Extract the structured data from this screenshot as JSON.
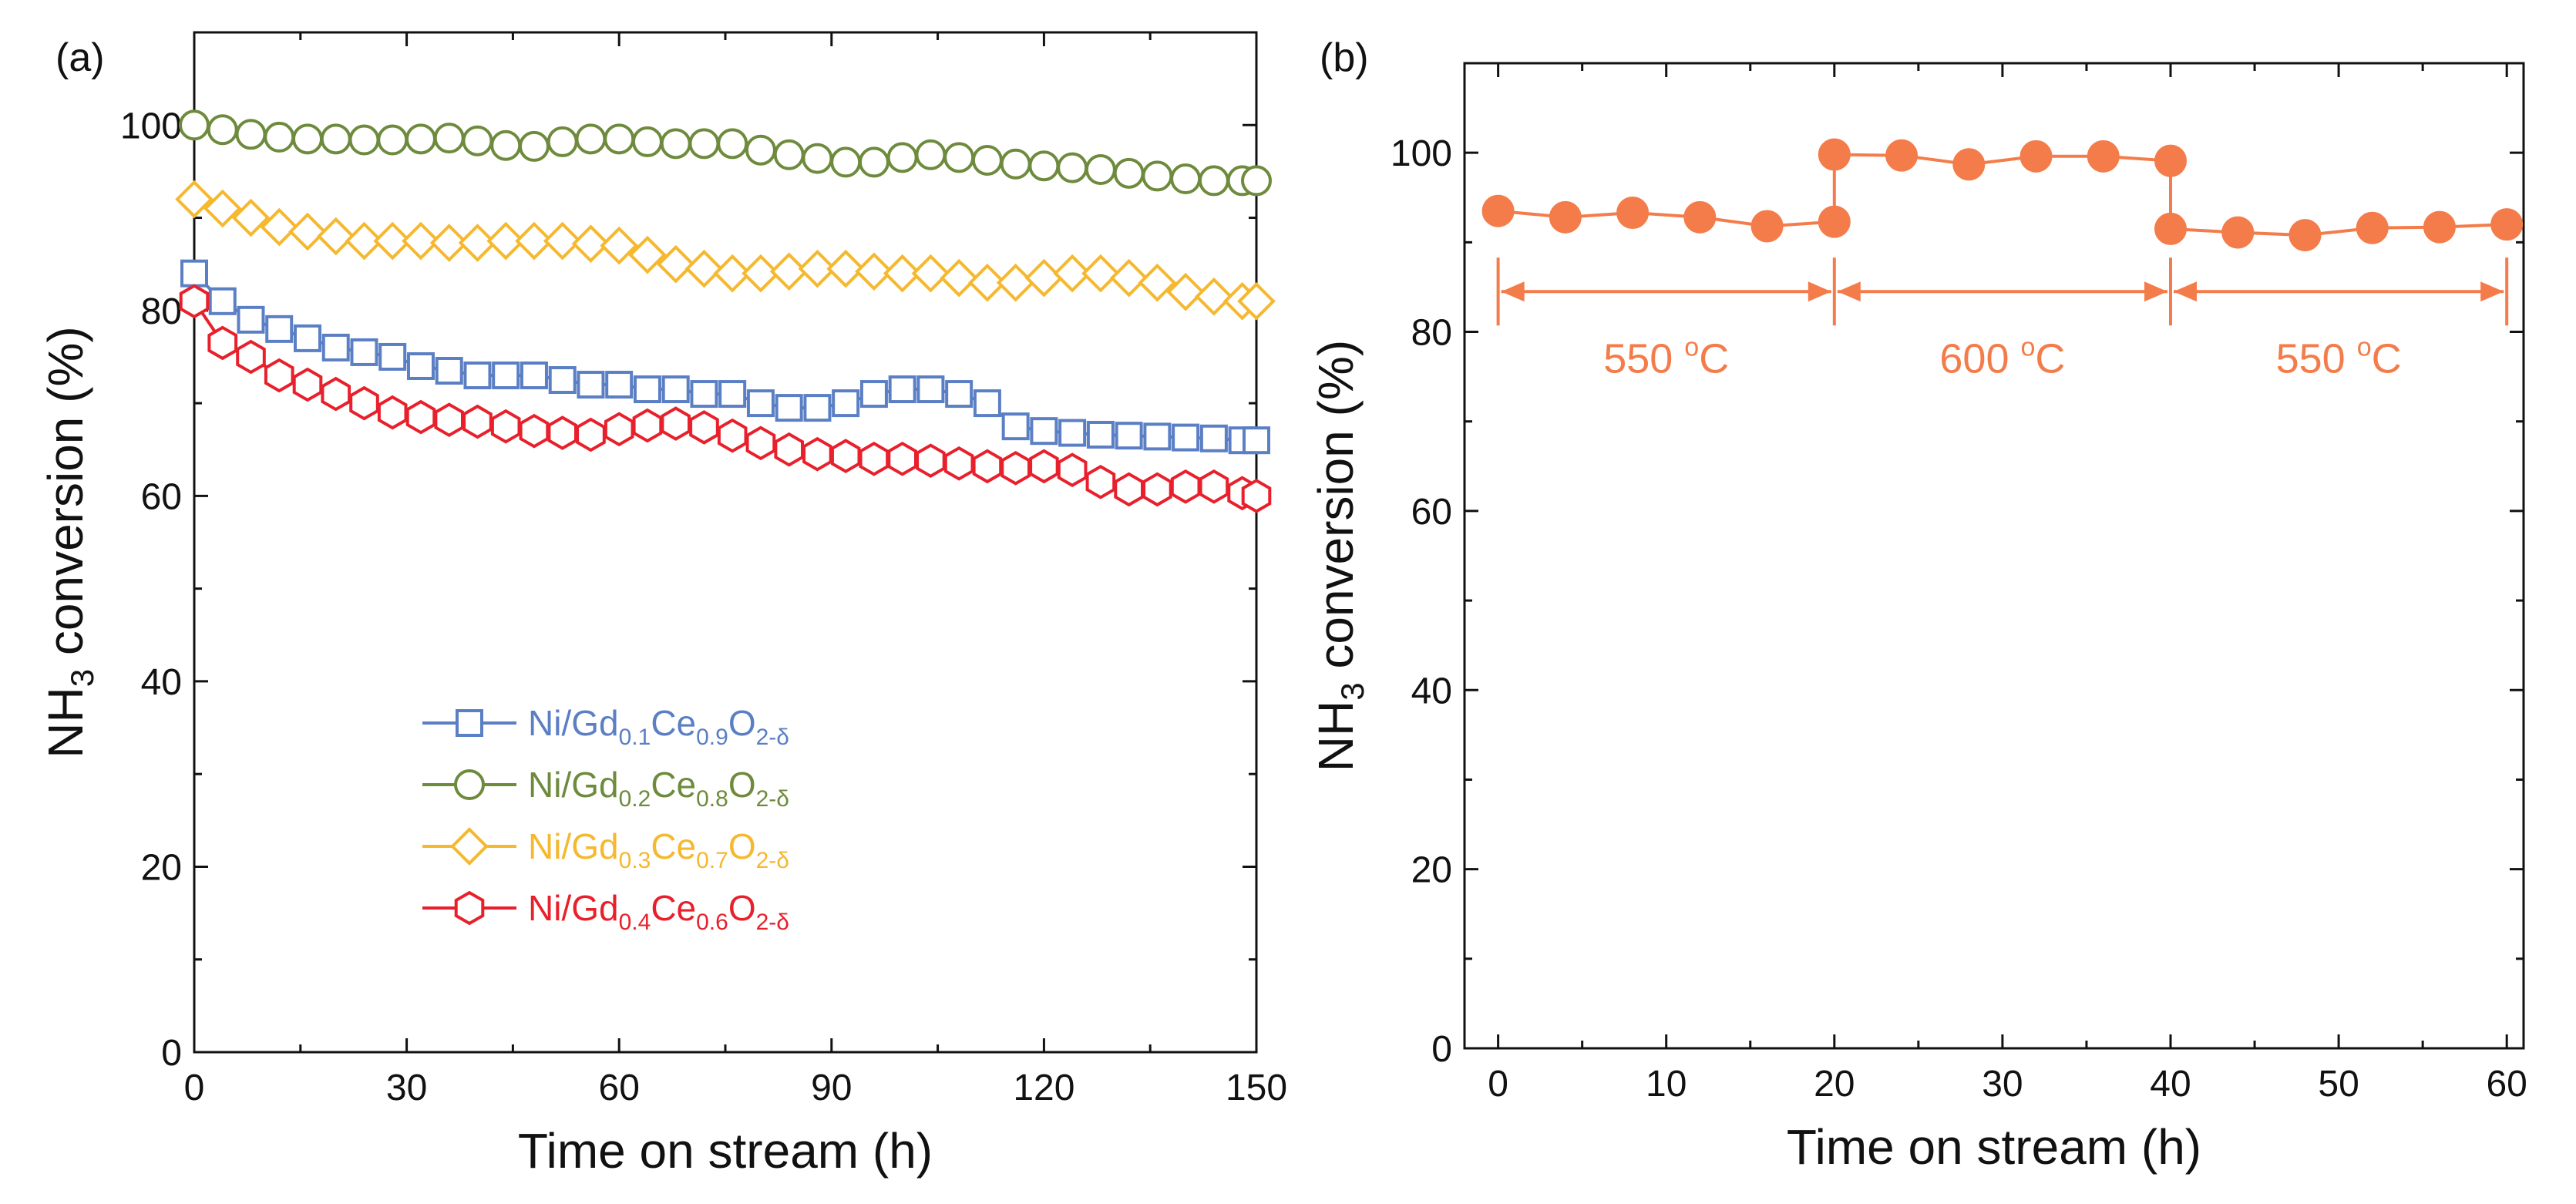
{
  "chart_data": [
    {
      "type": "line",
      "panel_label": "(a)",
      "xlabel": "Time on stream (h)",
      "ylabel_parts": {
        "main": "NH",
        "sub": "3",
        "rest": " conversion (%)"
      },
      "xlim": [
        0,
        150
      ],
      "ylim": [
        0,
        110
      ],
      "xticks": [
        0,
        30,
        60,
        90,
        120,
        150
      ],
      "yticks": [
        0,
        20,
        40,
        60,
        80,
        100
      ],
      "grid": false,
      "legend_position": "lower-left",
      "x": [
        0,
        4,
        8,
        12,
        16,
        20,
        24,
        28,
        32,
        36,
        40,
        44,
        48,
        52,
        56,
        60,
        64,
        68,
        72,
        76,
        80,
        84,
        88,
        92,
        96,
        100,
        104,
        108,
        112,
        116,
        120,
        124,
        128,
        132,
        136,
        140,
        144,
        148,
        150
      ],
      "series": [
        {
          "name": "Ni/Gd0.1Ce0.9O2-δ",
          "label_parts": {
            "a": "Ni/Gd",
            "s1": "0.1",
            "b": "Ce",
            "s2": "0.9",
            "c": "O",
            "s3": "2-δ"
          },
          "color": "#5b7fc4",
          "marker": "square",
          "values": [
            84,
            81,
            79,
            78,
            77,
            76,
            75.5,
            75,
            74,
            73.5,
            73,
            73,
            73,
            72.5,
            72,
            72,
            71.5,
            71.5,
            71,
            71,
            70,
            69.5,
            69.5,
            70,
            71,
            71.5,
            71.5,
            71,
            70,
            67.5,
            67,
            66.8,
            66.6,
            66.5,
            66.4,
            66.3,
            66.2,
            66,
            66
          ]
        },
        {
          "name": "Ni/Gd0.2Ce0.8O2-δ",
          "label_parts": {
            "a": "Ni/Gd",
            "s1": "0.2",
            "b": "Ce",
            "s2": "0.8",
            "c": "O",
            "s3": "2-δ"
          },
          "color": "#6e8b3d",
          "marker": "circle",
          "values": [
            100,
            99.5,
            99,
            98.7,
            98.5,
            98.5,
            98.4,
            98.4,
            98.5,
            98.6,
            98.3,
            97.8,
            97.7,
            98.2,
            98.5,
            98.5,
            98.2,
            98,
            98,
            98,
            97.3,
            96.8,
            96.4,
            96,
            96,
            96.5,
            96.8,
            96.5,
            96.2,
            95.8,
            95.6,
            95.4,
            95.2,
            94.8,
            94.5,
            94.2,
            94,
            94,
            94
          ]
        },
        {
          "name": "Ni/Gd0.3Ce0.7O2-δ",
          "label_parts": {
            "a": "Ni/Gd",
            "s1": "0.3",
            "b": "Ce",
            "s2": "0.7",
            "c": "O",
            "s3": "2-δ"
          },
          "color": "#f5b82e",
          "marker": "diamond",
          "values": [
            92,
            91,
            90,
            89,
            88.5,
            88,
            87.5,
            87.5,
            87.5,
            87.3,
            87.3,
            87.5,
            87.5,
            87.5,
            87.2,
            87,
            86,
            85,
            84.5,
            84,
            84,
            84.2,
            84.5,
            84.5,
            84.2,
            84,
            84,
            83.5,
            83,
            83,
            83.5,
            84,
            84,
            83.5,
            83,
            82,
            81.5,
            81,
            81
          ]
        },
        {
          "name": "Ni/Gd0.4Ce0.6O2-δ",
          "label_parts": {
            "a": "Ni/Gd",
            "s1": "0.4",
            "b": "Ce",
            "s2": "0.6",
            "c": "O",
            "s3": "2-δ"
          },
          "color": "#e8202c",
          "marker": "hexagon",
          "values": [
            81,
            76.5,
            75,
            73,
            72,
            71,
            70,
            69,
            68.5,
            68.2,
            68,
            67.5,
            67,
            66.8,
            66.6,
            67.2,
            67.6,
            67.8,
            67.4,
            66.5,
            65.7,
            65,
            64.5,
            64.3,
            64,
            64,
            63.8,
            63.5,
            63.2,
            63,
            63.2,
            62.8,
            61.5,
            60.7,
            60.7,
            61,
            61,
            60.3,
            60
          ]
        }
      ]
    },
    {
      "type": "line",
      "panel_label": "(b)",
      "xlabel": "Time on stream (h)",
      "ylabel_parts": {
        "main": "NH",
        "sub": "3",
        "rest": " conversion (%)"
      },
      "xlim": [
        -2,
        61
      ],
      "ylim": [
        0,
        110
      ],
      "xticks": [
        0,
        10,
        20,
        30,
        40,
        50,
        60
      ],
      "yticks": [
        0,
        20,
        40,
        60,
        80,
        100
      ],
      "grid": false,
      "series": [
        {
          "name": "NH3 conversion",
          "color": "#f47c4a",
          "marker": "filled-circle",
          "points": [
            [
              0,
              93.5
            ],
            [
              4,
              92.8
            ],
            [
              8,
              93.3
            ],
            [
              12,
              92.8
            ],
            [
              16,
              91.8
            ],
            [
              20,
              92.3
            ],
            [
              20,
              99.8
            ],
            [
              24,
              99.7
            ],
            [
              28,
              98.7
            ],
            [
              32,
              99.6
            ],
            [
              36,
              99.6
            ],
            [
              40,
              99.1
            ],
            [
              40,
              91.5
            ],
            [
              44,
              91.1
            ],
            [
              48,
              90.8
            ],
            [
              52,
              91.6
            ],
            [
              56,
              91.7
            ],
            [
              60,
              92
            ]
          ]
        }
      ],
      "temperature_ranges": [
        {
          "x0": 0,
          "x1": 20,
          "value": "550 ",
          "sup": "o",
          "unit": "C"
        },
        {
          "x0": 20,
          "x1": 40,
          "value": "600 ",
          "sup": "o",
          "unit": "C"
        },
        {
          "x0": 40,
          "x1": 60,
          "value": "550 ",
          "sup": "o",
          "unit": "C"
        }
      ],
      "annotation_color": "#f47c4a",
      "annotation_y": 84.5
    }
  ]
}
